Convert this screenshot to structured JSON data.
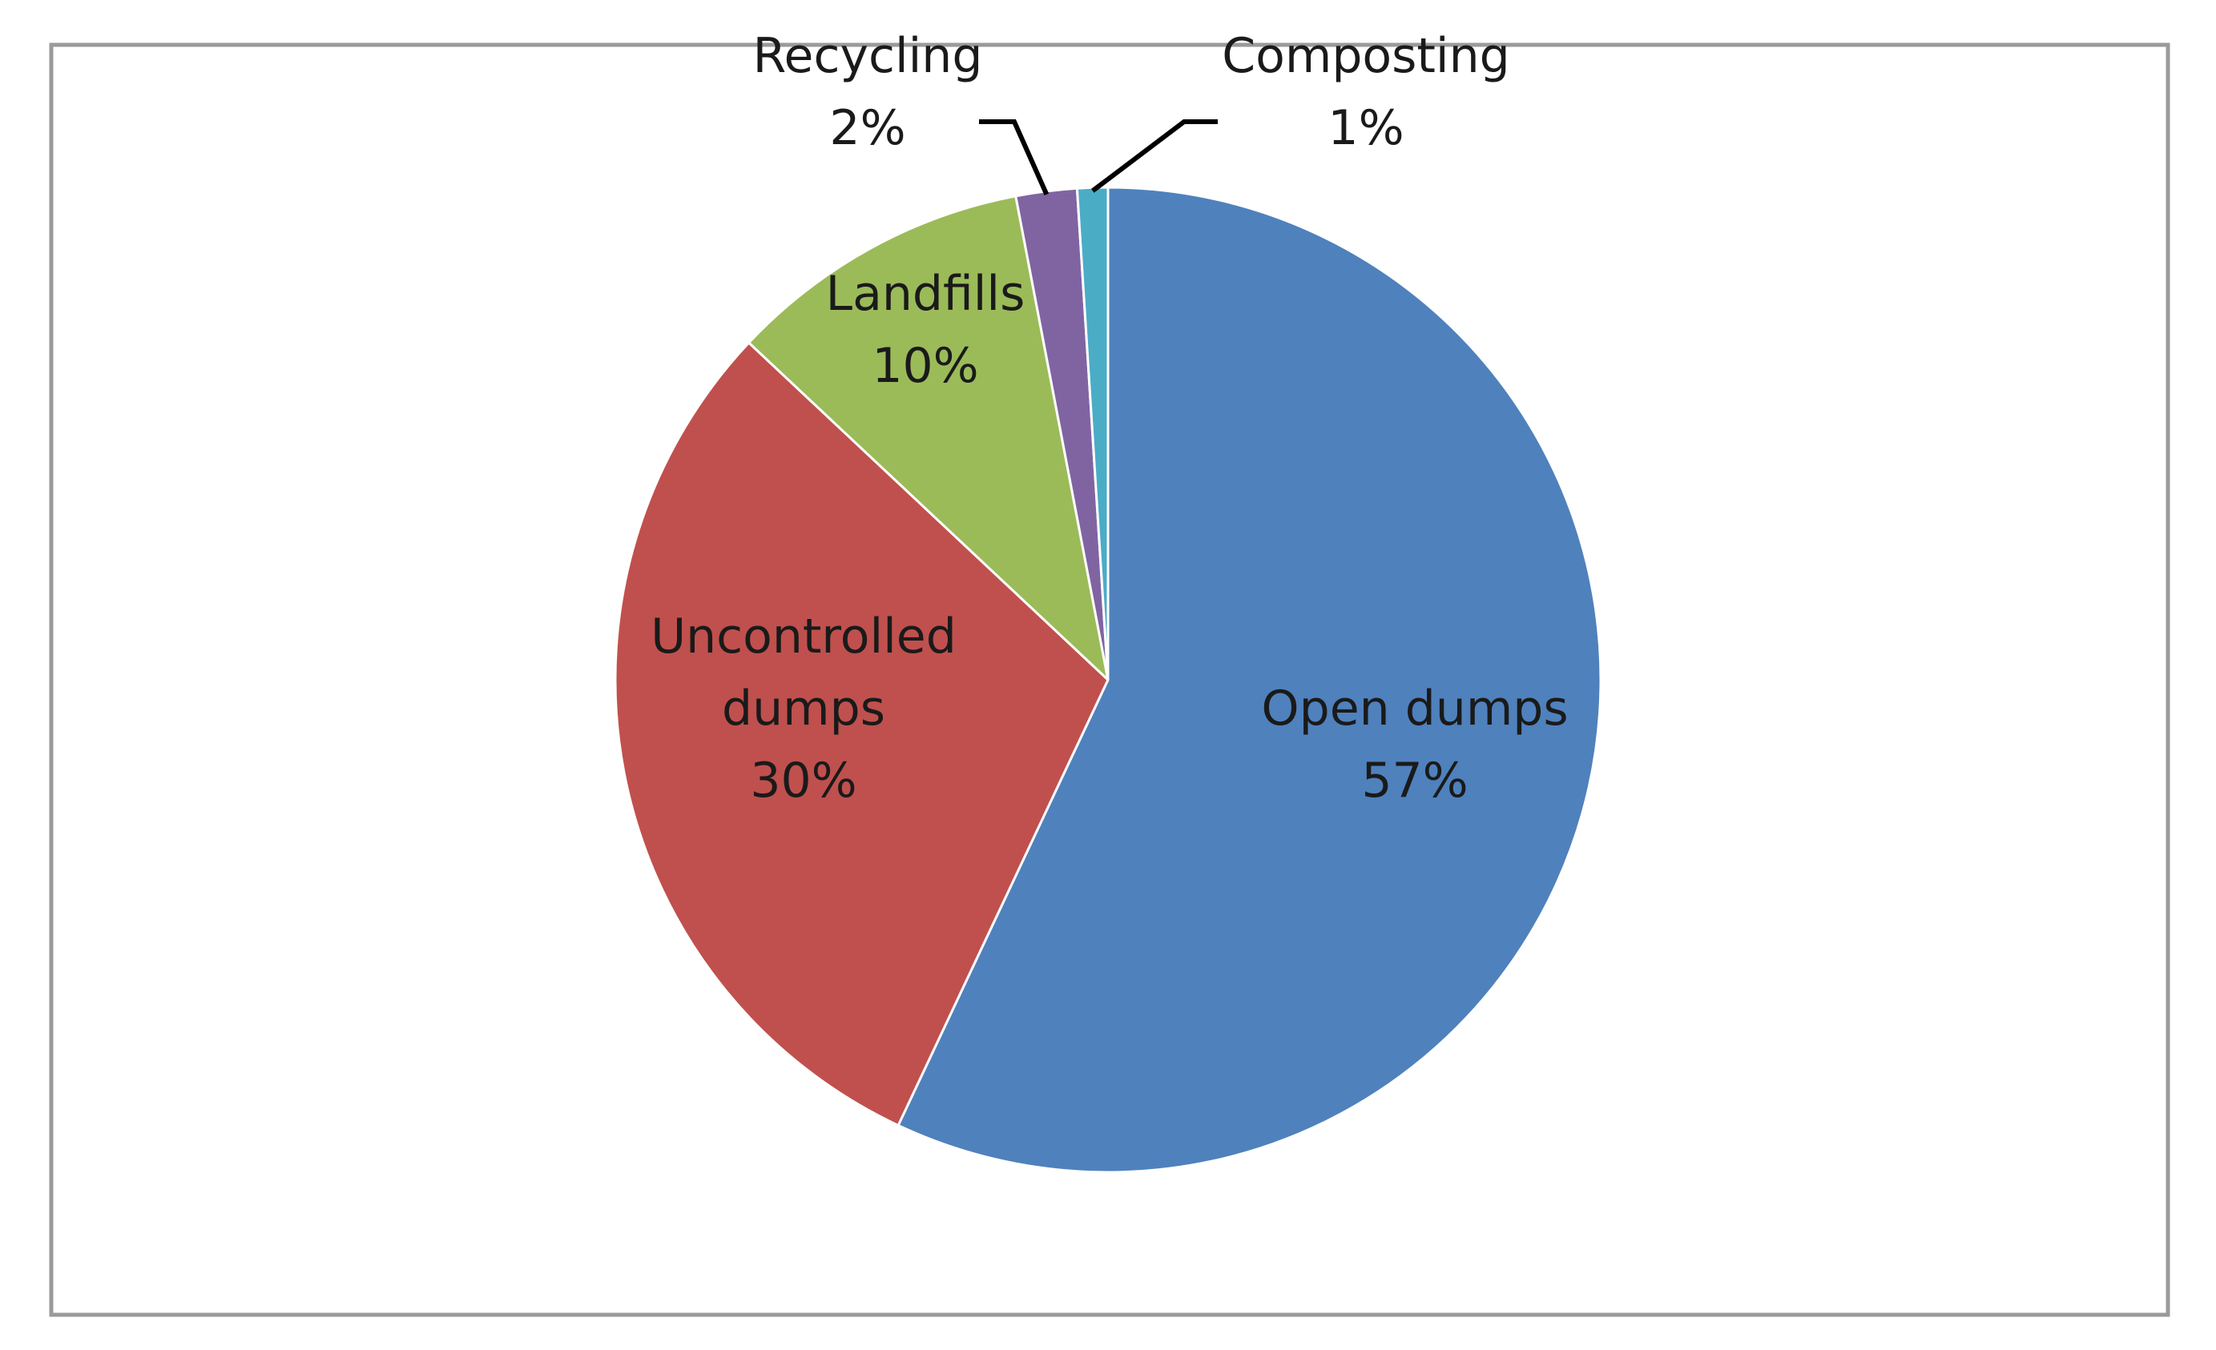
{
  "chart_data": {
    "type": "pie",
    "title": "",
    "categories": [
      "Open dumps",
      "Uncontrolled dumps",
      "Landfills",
      "Recycling",
      "Composting"
    ],
    "values": [
      57,
      30,
      10,
      2,
      1
    ],
    "value_labels": [
      "57%",
      "30%",
      "10%",
      "2%",
      "1%"
    ],
    "colors": [
      "#4F81BD",
      "#C0504D",
      "#9BBB59",
      "#8064A2",
      "#4BACC6"
    ],
    "label_lines": [
      [
        "Open dumps",
        "57%"
      ],
      [
        "Uncontrolled",
        "dumps",
        "30%"
      ],
      [
        "Landfills",
        "10%"
      ],
      [
        "Recycling",
        "2%"
      ],
      [
        "Composting",
        "1%"
      ]
    ],
    "start_angle_deg": 0,
    "direction": "clockwise",
    "legend": "none",
    "border_color": "#9A9A9A",
    "leader_lines": [
      "Recycling",
      "Composting"
    ]
  }
}
